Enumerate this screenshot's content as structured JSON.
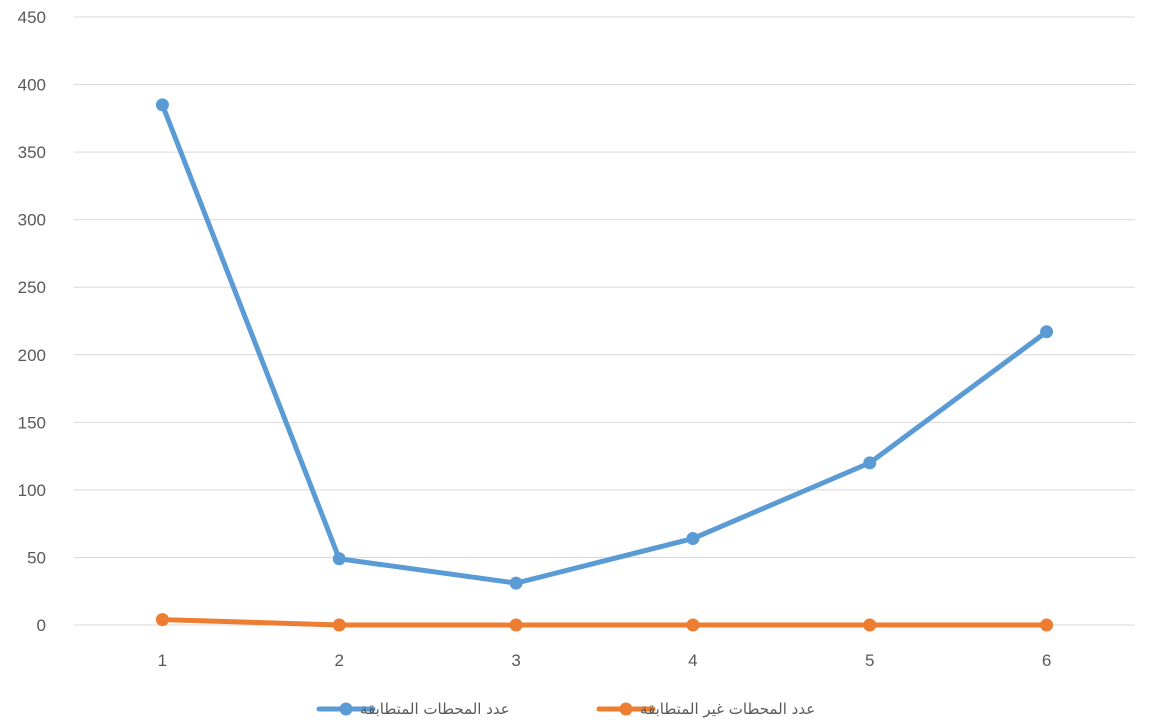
{
  "chart_data": {
    "type": "line",
    "title": "",
    "xlabel": "",
    "ylabel": "",
    "categories": [
      "1",
      "2",
      "3",
      "4",
      "5",
      "6"
    ],
    "ylim": [
      0,
      450
    ],
    "yticks": [
      0,
      50,
      100,
      150,
      200,
      250,
      300,
      350,
      400,
      450
    ],
    "grid": true,
    "legend_position": "bottom",
    "series": [
      {
        "name": "عدد المحطات المتطابقة",
        "color": "#5b9bd5",
        "values": [
          385,
          49,
          31,
          64,
          120,
          217
        ]
      },
      {
        "name": "عدد المحطات غير المتطابقة",
        "color": "#ed7d31",
        "values": [
          4,
          0,
          0,
          0,
          0,
          0
        ]
      }
    ]
  }
}
